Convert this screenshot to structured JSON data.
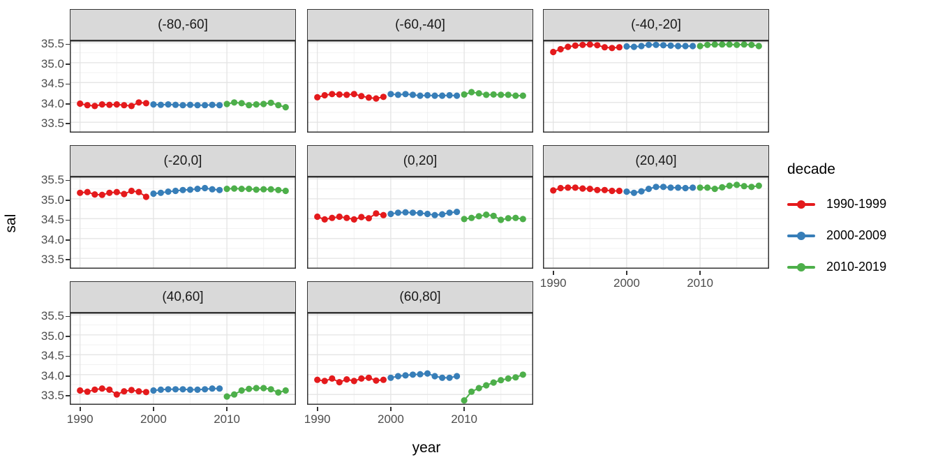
{
  "axes": {
    "x_title": "year",
    "y_title": "sal"
  },
  "legend": {
    "title": "decade",
    "entries": [
      {
        "label": "1990-1999",
        "color": "#E41A1C"
      },
      {
        "label": "2000-2009",
        "color": "#377EB8"
      },
      {
        "label": "2010-2019",
        "color": "#4DAF4A"
      }
    ]
  },
  "chart_data": {
    "type": "scatter",
    "title": "",
    "xlabel": "year",
    "ylabel": "sal",
    "legend_title": "decade",
    "legend_position": "right",
    "grid": true,
    "facet_variable": "latitude band",
    "x_domain": [
      1988.6,
      2019.4
    ],
    "y_domain": [
      33.24,
      35.56
    ],
    "x_ticks": [
      1990,
      2000,
      2010
    ],
    "y_ticks": [
      "33.5",
      "34.0",
      "34.5",
      "35.0",
      "35.5"
    ],
    "x_minor": [
      1995,
      2005,
      2015
    ],
    "y_minor": [
      33.25,
      33.75,
      34.25,
      34.75,
      35.25
    ],
    "facets": [
      {
        "label": "(-80,-60]",
        "series": [
          {
            "name": "1990-1999",
            "x": [
              1990,
              1991,
              1992,
              1993,
              1994,
              1995,
              1996,
              1997,
              1998,
              1999
            ],
            "y": [
              33.97,
              33.93,
              33.91,
              33.95,
              33.94,
              33.95,
              33.93,
              33.91,
              34.0,
              33.98
            ]
          },
          {
            "name": "2000-2009",
            "x": [
              2000,
              2001,
              2002,
              2003,
              2004,
              2005,
              2006,
              2007,
              2008,
              2009
            ],
            "y": [
              33.95,
              33.94,
              33.95,
              33.94,
              33.93,
              33.94,
              33.93,
              33.93,
              33.94,
              33.93
            ]
          },
          {
            "name": "2010-2019",
            "x": [
              2010,
              2011,
              2012,
              2013,
              2014,
              2015,
              2016,
              2017,
              2018
            ],
            "y": [
              33.96,
              34.0,
              33.98,
              33.93,
              33.95,
              33.96,
              33.99,
              33.93,
              33.88
            ]
          }
        ]
      },
      {
        "label": "(-60,-40]",
        "series": [
          {
            "name": "1990-1999",
            "x": [
              1990,
              1991,
              1992,
              1993,
              1994,
              1995,
              1996,
              1997,
              1998,
              1999
            ],
            "y": [
              34.13,
              34.18,
              34.21,
              34.2,
              34.19,
              34.21,
              34.16,
              34.12,
              34.1,
              34.14
            ]
          },
          {
            "name": "2000-2009",
            "x": [
              2000,
              2001,
              2002,
              2003,
              2004,
              2005,
              2006,
              2007,
              2008,
              2009
            ],
            "y": [
              34.21,
              34.19,
              34.21,
              34.19,
              34.17,
              34.18,
              34.17,
              34.17,
              34.18,
              34.17
            ]
          },
          {
            "name": "2010-2019",
            "x": [
              2010,
              2011,
              2012,
              2013,
              2014,
              2015,
              2016,
              2017,
              2018
            ],
            "y": [
              34.2,
              34.26,
              34.23,
              34.19,
              34.2,
              34.19,
              34.19,
              34.17,
              34.17
            ]
          }
        ]
      },
      {
        "label": "(-40,-20]",
        "series": [
          {
            "name": "1990-1999",
            "x": [
              1990,
              1991,
              1992,
              1993,
              1994,
              1995,
              1996,
              1997,
              1998,
              1999
            ],
            "y": [
              35.27,
              35.34,
              35.4,
              35.43,
              35.45,
              35.46,
              35.44,
              35.39,
              35.37,
              35.39
            ]
          },
          {
            "name": "2000-2009",
            "x": [
              2000,
              2001,
              2002,
              2003,
              2004,
              2005,
              2006,
              2007,
              2008,
              2009
            ],
            "y": [
              35.41,
              35.4,
              35.42,
              35.45,
              35.45,
              35.44,
              35.43,
              35.42,
              35.42,
              35.42
            ]
          },
          {
            "name": "2010-2019",
            "x": [
              2010,
              2011,
              2012,
              2013,
              2014,
              2015,
              2016,
              2017,
              2018
            ],
            "y": [
              35.42,
              35.45,
              35.46,
              35.46,
              35.46,
              35.45,
              35.46,
              35.45,
              35.42
            ]
          }
        ]
      },
      {
        "label": "(-20,0]",
        "series": [
          {
            "name": "1990-1999",
            "x": [
              1990,
              1991,
              1992,
              1993,
              1994,
              1995,
              1996,
              1997,
              1998,
              1999
            ],
            "y": [
              35.15,
              35.17,
              35.11,
              35.1,
              35.15,
              35.17,
              35.12,
              35.2,
              35.17,
              35.05
            ]
          },
          {
            "name": "2000-2009",
            "x": [
              2000,
              2001,
              2002,
              2003,
              2004,
              2005,
              2006,
              2007,
              2008,
              2009
            ],
            "y": [
              35.13,
              35.15,
              35.18,
              35.2,
              35.22,
              35.23,
              35.25,
              35.27,
              35.24,
              35.22
            ]
          },
          {
            "name": "2010-2019",
            "x": [
              2010,
              2011,
              2012,
              2013,
              2014,
              2015,
              2016,
              2017,
              2018
            ],
            "y": [
              35.25,
              35.26,
              35.25,
              35.25,
              35.23,
              35.24,
              35.24,
              35.22,
              35.2
            ]
          }
        ]
      },
      {
        "label": "(0,20]",
        "series": [
          {
            "name": "1990-1999",
            "x": [
              1990,
              1991,
              1992,
              1993,
              1994,
              1995,
              1996,
              1997,
              1998,
              1999
            ],
            "y": [
              34.55,
              34.48,
              34.52,
              34.55,
              34.52,
              34.48,
              34.54,
              34.51,
              34.63,
              34.59
            ]
          },
          {
            "name": "2000-2009",
            "x": [
              2000,
              2001,
              2002,
              2003,
              2004,
              2005,
              2006,
              2007,
              2008,
              2009
            ],
            "y": [
              34.62,
              34.65,
              34.66,
              34.65,
              34.64,
              34.62,
              34.59,
              34.61,
              34.65,
              34.67
            ]
          },
          {
            "name": "2010-2019",
            "x": [
              2010,
              2011,
              2012,
              2013,
              2014,
              2015,
              2016,
              2017,
              2018
            ],
            "y": [
              34.49,
              34.52,
              34.56,
              34.6,
              34.57,
              34.47,
              34.51,
              34.52,
              34.49
            ]
          }
        ]
      },
      {
        "label": "(20,40]",
        "series": [
          {
            "name": "1990-1999",
            "x": [
              1990,
              1991,
              1992,
              1993,
              1994,
              1995,
              1996,
              1997,
              1998,
              1999
            ],
            "y": [
              35.21,
              35.27,
              35.28,
              35.28,
              35.26,
              35.25,
              35.22,
              35.22,
              35.2,
              35.2
            ]
          },
          {
            "name": "2000-2009",
            "x": [
              2000,
              2001,
              2002,
              2003,
              2004,
              2005,
              2006,
              2007,
              2008,
              2009
            ],
            "y": [
              35.18,
              35.15,
              35.19,
              35.25,
              35.3,
              35.3,
              35.28,
              35.28,
              35.27,
              35.28
            ]
          },
          {
            "name": "2010-2019",
            "x": [
              2010,
              2011,
              2012,
              2013,
              2014,
              2015,
              2016,
              2017,
              2018
            ],
            "y": [
              35.28,
              35.28,
              35.25,
              35.29,
              35.33,
              35.35,
              35.32,
              35.3,
              35.33
            ]
          }
        ]
      },
      {
        "label": "(40,60]",
        "series": [
          {
            "name": "1990-1999",
            "x": [
              1990,
              1991,
              1992,
              1993,
              1994,
              1995,
              1996,
              1997,
              1998,
              1999
            ],
            "y": [
              33.6,
              33.57,
              33.62,
              33.65,
              33.62,
              33.5,
              33.58,
              33.61,
              33.58,
              33.56
            ]
          },
          {
            "name": "2000-2009",
            "x": [
              2000,
              2001,
              2002,
              2003,
              2004,
              2005,
              2006,
              2007,
              2008,
              2009
            ],
            "y": [
              33.6,
              33.62,
              33.63,
              33.63,
              33.63,
              33.62,
              33.62,
              33.63,
              33.65,
              33.65
            ]
          },
          {
            "name": "2010-2019",
            "x": [
              2010,
              2011,
              2012,
              2013,
              2014,
              2015,
              2016,
              2017,
              2018
            ],
            "y": [
              33.45,
              33.5,
              33.6,
              33.64,
              33.66,
              33.66,
              33.63,
              33.55,
              33.6
            ]
          }
        ]
      },
      {
        "label": "(60,80]",
        "series": [
          {
            "name": "1990-1999",
            "x": [
              1990,
              1991,
              1992,
              1993,
              1994,
              1995,
              1996,
              1997,
              1998,
              1999
            ],
            "y": [
              33.87,
              33.84,
              33.9,
              33.81,
              33.88,
              33.84,
              33.9,
              33.92,
              33.85,
              33.87
            ]
          },
          {
            "name": "2000-2009",
            "x": [
              2000,
              2001,
              2002,
              2003,
              2004,
              2005,
              2006,
              2007,
              2008,
              2009
            ],
            "y": [
              33.92,
              33.96,
              33.98,
              34.0,
              34.01,
              34.03,
              33.96,
              33.92,
              33.92,
              33.96
            ]
          },
          {
            "name": "2010-2019",
            "x": [
              2010,
              2011,
              2012,
              2013,
              2014,
              2015,
              2016,
              2017,
              2018
            ],
            "y": [
              33.35,
              33.57,
              33.66,
              33.73,
              33.8,
              33.86,
              33.9,
              33.93,
              34.0
            ]
          }
        ]
      }
    ]
  }
}
